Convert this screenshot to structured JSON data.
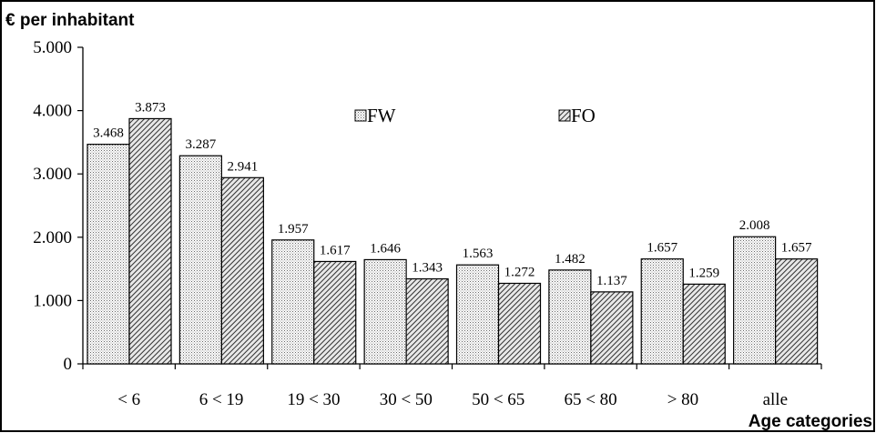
{
  "chart_data": {
    "type": "bar",
    "title": "€ per inhabitant",
    "xlabel": "Age categories",
    "ylabel": "",
    "categories": [
      "< 6",
      "6 < 19",
      "19 < 30",
      "30 < 50",
      "50 < 65",
      "65 < 80",
      "> 80",
      "alle"
    ],
    "series": [
      {
        "name": "FW",
        "values": [
          3468,
          3287,
          1957,
          1646,
          1563,
          1482,
          1657,
          2008
        ],
        "labels": [
          "3.468",
          "3.287",
          "1.957",
          "1.646",
          "1.563",
          "1.482",
          "1.657",
          "2.008"
        ],
        "pattern": "dots"
      },
      {
        "name": "FO",
        "values": [
          3873,
          2941,
          1617,
          1343,
          1272,
          1137,
          1259,
          1657
        ],
        "labels": [
          "3.873",
          "2.941",
          "1.617",
          "1.343",
          "1.272",
          "1.137",
          "1.259",
          "1.657"
        ],
        "pattern": "diagonal"
      }
    ],
    "ylim": [
      0,
      5000
    ],
    "yticks": [
      0,
      1000,
      2000,
      3000,
      4000,
      5000
    ],
    "ytick_labels": [
      "0",
      "1.000",
      "2.000",
      "3.000",
      "4.000",
      "5.000"
    ],
    "grid": false,
    "legend_position": "top-center"
  }
}
